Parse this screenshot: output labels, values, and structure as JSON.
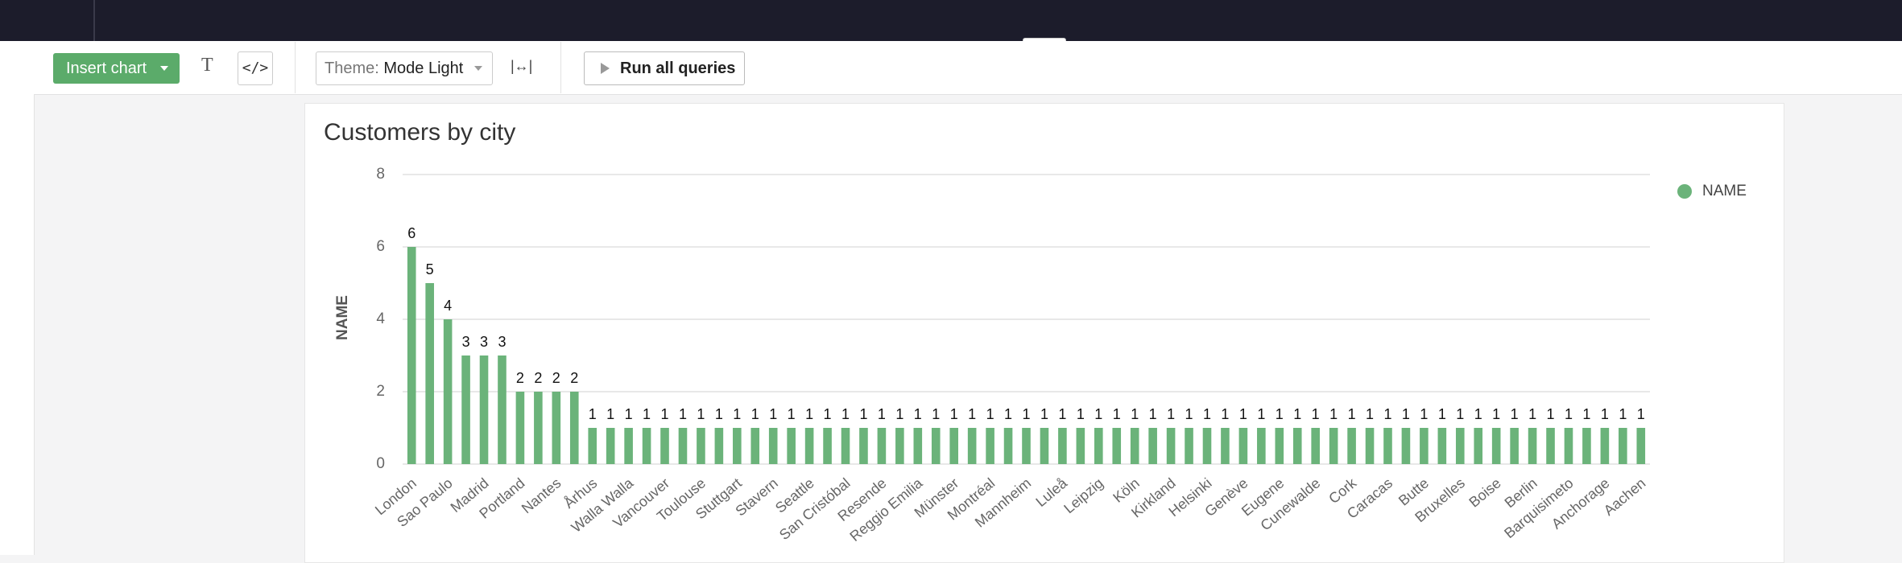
{
  "toolbar": {
    "insert_chart": "Insert chart",
    "text_button": "T",
    "code_button": "</>",
    "theme_prefix": "Theme:",
    "theme_value": "Mode Light",
    "run_all": "Run all queries"
  },
  "chart_data": {
    "type": "bar",
    "title": "Customers by city",
    "ylabel": "NAME",
    "categories": [
      "London",
      null,
      "Sao Paulo",
      null,
      "Madrid",
      null,
      "Portland",
      null,
      "Nantes",
      null,
      "Århus",
      null,
      "Walla Walla",
      null,
      "Vancouver",
      null,
      "Toulouse",
      null,
      "Stuttgart",
      null,
      "Stavern",
      null,
      "Seattle",
      null,
      "San Cristóbal",
      null,
      "Resende",
      null,
      "Reggio Emilia",
      null,
      "Münster",
      null,
      "Montréal",
      null,
      "Mannheim",
      null,
      "Luleå",
      null,
      "Leipzig",
      null,
      "Köln",
      null,
      "Kirkland",
      null,
      "Helsinki",
      null,
      "Genève",
      null,
      "Eugene",
      null,
      "Cunewalde",
      null,
      "Cork",
      null,
      "Caracas",
      null,
      "Butte",
      null,
      "Bruxelles",
      null,
      "Boise",
      null,
      "Berlin",
      null,
      "Barquisimeto",
      null,
      "Anchorage",
      null,
      "Aachen"
    ],
    "series": [
      {
        "name": "NAME",
        "color": "#6bb37a",
        "values": [
          6,
          5,
          4,
          3,
          3,
          3,
          2,
          2,
          2,
          2,
          1,
          1,
          1,
          1,
          1,
          1,
          1,
          1,
          1,
          1,
          1,
          1,
          1,
          1,
          1,
          1,
          1,
          1,
          1,
          1,
          1,
          1,
          1,
          1,
          1,
          1,
          1,
          1,
          1,
          1,
          1,
          1,
          1,
          1,
          1,
          1,
          1,
          1,
          1,
          1,
          1,
          1,
          1,
          1,
          1,
          1,
          1,
          1,
          1,
          1,
          1,
          1,
          1,
          1,
          1,
          1,
          1,
          1,
          1
        ]
      }
    ],
    "ylim": [
      0,
      8
    ],
    "yticks": [
      0,
      2,
      4,
      6,
      8
    ],
    "grid": true,
    "legend": "right"
  }
}
